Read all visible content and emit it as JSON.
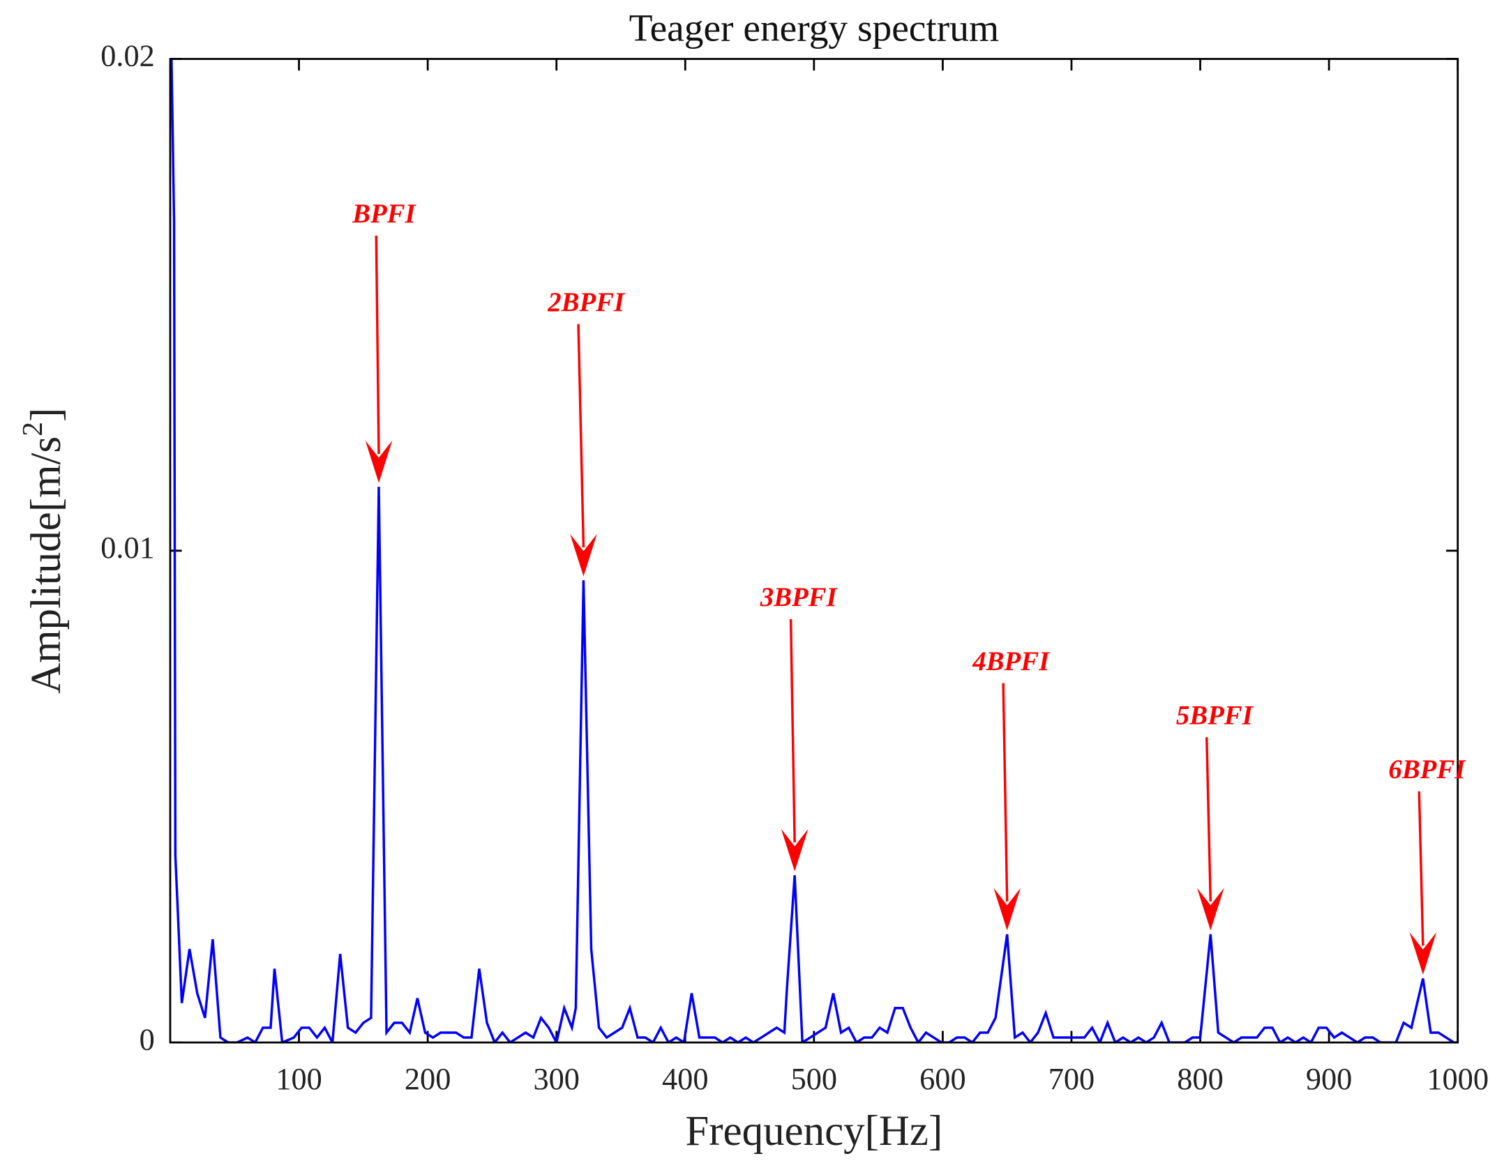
{
  "chart_data": {
    "type": "line",
    "title": "Teager energy spectrum",
    "xlabel": "Frequency[Hz]",
    "ylabel_parts": [
      "Amplitude[m/s",
      "2",
      "]"
    ],
    "xlim": [
      0,
      1000
    ],
    "ylim": [
      0,
      0.02
    ],
    "xticks": [
      100,
      200,
      300,
      400,
      500,
      600,
      700,
      800,
      900,
      1000
    ],
    "yticks": [
      0,
      0.01,
      0.02
    ],
    "grid": false,
    "series": [
      {
        "name": "Teager energy spectrum",
        "color": "#0000ff",
        "x": [
          1,
          3,
          4,
          9,
          15,
          21,
          27,
          33,
          39,
          45,
          52,
          60,
          66,
          72,
          78,
          81,
          87,
          96,
          102,
          108,
          114,
          120,
          126,
          132,
          138,
          144,
          150,
          156,
          162,
          168,
          174,
          180,
          186,
          192,
          198,
          204,
          210,
          216,
          222,
          228,
          234,
          240,
          246,
          252,
          258,
          264,
          270,
          276,
          282,
          288,
          294,
          300,
          306,
          312,
          315,
          321,
          327,
          333,
          339,
          345,
          351,
          357,
          363,
          369,
          375,
          381,
          387,
          393,
          399,
          405,
          411,
          417,
          423,
          429,
          435,
          441,
          447,
          453,
          459,
          465,
          471,
          477,
          479,
          485,
          491,
          497,
          503,
          509,
          515,
          521,
          527,
          533,
          539,
          545,
          551,
          557,
          563,
          569,
          575,
          581,
          587,
          593,
          599,
          605,
          611,
          617,
          623,
          629,
          635,
          641,
          650,
          656,
          662,
          668,
          674,
          680,
          686,
          692,
          698,
          704,
          710,
          716,
          722,
          728,
          734,
          740,
          746,
          752,
          758,
          764,
          770,
          776,
          782,
          788,
          794,
          800,
          808,
          814,
          820,
          826,
          832,
          838,
          844,
          850,
          856,
          862,
          868,
          874,
          880,
          886,
          892,
          898,
          904,
          910,
          916,
          922,
          928,
          934,
          940,
          946,
          952,
          958,
          964,
          973,
          979,
          985,
          991,
          997,
          1000
        ],
        "values": [
          0.02,
          0.0167,
          0.0038,
          0.0008,
          0.0019,
          0.001,
          0.0005,
          0.0021,
          0.0001,
          0,
          0,
          0.0001,
          0,
          0.0003,
          0.0003,
          0.0015,
          0,
          0.0001,
          0.0003,
          0.0003,
          0.0001,
          0.0003,
          0,
          0.0018,
          0.0003,
          0.0002,
          0.0004,
          0.0005,
          0.0113,
          0.0002,
          0.0004,
          0.0004,
          0.0002,
          0.0009,
          0.0002,
          0.0001,
          0.0002,
          0.0002,
          0.0002,
          0.0001,
          0.0001,
          0.0015,
          0.0004,
          0,
          0.0002,
          0,
          0.0001,
          0.0002,
          0.0001,
          0.0005,
          0.0003,
          0,
          0.0007,
          0.0003,
          0.0007,
          0.0094,
          0.0019,
          0.0003,
          0.0001,
          0.0002,
          0.0003,
          0.0007,
          0.0001,
          0.0001,
          0,
          0.0003,
          0,
          0.0001,
          0,
          0.001,
          0.0001,
          0.0001,
          0.0001,
          0,
          0.0001,
          0,
          0.0001,
          0,
          0.0001,
          0.0002,
          0.0003,
          0.0002,
          0.0011,
          0.0034,
          0,
          0.0001,
          0.0002,
          0.0003,
          0.001,
          0.0002,
          0.0003,
          0,
          0.0001,
          0.0001,
          0.0003,
          0.0002,
          0.0007,
          0.0007,
          0.0003,
          0,
          0.0002,
          0.0001,
          0,
          0,
          0.0001,
          0.0001,
          0,
          0.0002,
          0.0002,
          0.0005,
          0.0022,
          0.0001,
          0.0002,
          0,
          0.0002,
          0.0006,
          0.0001,
          0.0001,
          0.0001,
          0.0001,
          0.0001,
          0.0003,
          0,
          0.0004,
          0,
          0.0001,
          0,
          0.0001,
          0,
          0.0001,
          0.0004,
          0,
          0,
          0,
          0.0001,
          0.0001,
          0.0022,
          0.0002,
          0.0001,
          0,
          0.0001,
          0.0001,
          0.0001,
          0.0003,
          0.0003,
          0,
          0.0001,
          0,
          0.0001,
          0,
          0.0003,
          0.0003,
          0.0001,
          0.0002,
          0.0001,
          0,
          0.0001,
          0.0001,
          0,
          0,
          0,
          0.0004,
          0.0003,
          0.0013,
          0.0002,
          0.0002,
          0.0001,
          0,
          0
        ]
      }
    ],
    "annotations": [
      {
        "text": "BPFI",
        "x": 162,
        "y": 0.0113,
        "text_x": 166,
        "text_y": 0.0168
      },
      {
        "text": "2BPFI",
        "x": 321,
        "y": 0.0094,
        "text_x": 323,
        "text_y": 0.015
      },
      {
        "text": "3BPFI",
        "x": 485,
        "y": 0.0034,
        "text_x": 488,
        "text_y": 0.009
      },
      {
        "text": "4BPFI",
        "x": 650,
        "y": 0.0022,
        "text_x": 653,
        "text_y": 0.0077
      },
      {
        "text": "5BPFI",
        "x": 808,
        "y": 0.0022,
        "text_x": 811,
        "text_y": 0.0066
      },
      {
        "text": "6BPFI",
        "x": 973,
        "y": 0.0013,
        "text_x": 976,
        "text_y": 0.0055
      }
    ]
  }
}
